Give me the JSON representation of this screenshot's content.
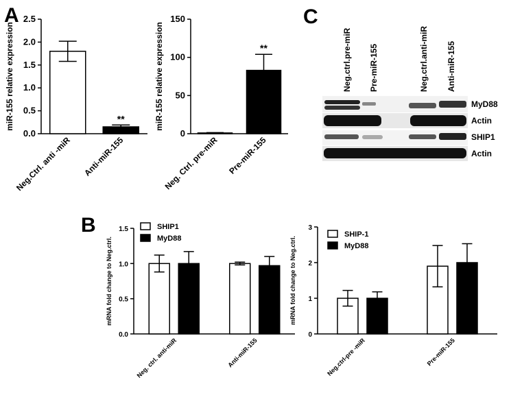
{
  "panel_labels": [
    "A",
    "B",
    "C"
  ],
  "blot": {
    "lanes": [
      "Neg.ctrl.pre-miR",
      "Pre-miR-155",
      "Neg.ctrl.anti-miR",
      "Anti-miR-155"
    ],
    "rows": [
      "MyD88",
      "Actin",
      "SHIP1",
      "Actin"
    ]
  },
  "chart_data": [
    {
      "type": "bar",
      "ylabel": "miR-155 relative expression",
      "categories": [
        "Neg.Ctrl. anti -miR",
        "Anti-miR-155"
      ],
      "values": [
        1.8,
        0.15
      ],
      "error": [
        0.22,
        0.04
      ],
      "colors": [
        "#ffffff",
        "#000000"
      ],
      "significance": [
        null,
        "**"
      ],
      "ylim": [
        0,
        2.5
      ],
      "yticks": [
        {
          "value": 0,
          "label": "0.0"
        },
        0.5,
        {
          "value": 1,
          "label": "1.0"
        },
        1.5,
        {
          "value": 2,
          "label": "2.0"
        },
        2.5
      ]
    },
    {
      "type": "bar",
      "ylabel": "miR-155 relative expression",
      "categories": [
        "Neg. Ctrl. pre-miR",
        "Pre-miR-155"
      ],
      "values": [
        1,
        83
      ],
      "error": [
        0.5,
        21
      ],
      "colors": [
        "#ffffff",
        "#000000"
      ],
      "significance": [
        null,
        "**"
      ],
      "ylim": [
        0,
        150
      ],
      "yticks": [
        0,
        50,
        100,
        150
      ]
    },
    {
      "type": "grouped_bar",
      "ylabel": "mRNA fold change to Neg.ctrl.",
      "categories": [
        "Neg. ctrl. anti-miR",
        "Anti-miR-155"
      ],
      "series": [
        {
          "name": "SHIP1",
          "color": "#ffffff",
          "values": [
            1.0,
            1.0
          ],
          "error": [
            0.12,
            0.02
          ]
        },
        {
          "name": "MyD88",
          "color": "#000000",
          "values": [
            1.0,
            0.97
          ],
          "error": [
            0.17,
            0.13
          ]
        }
      ],
      "ylim": [
        0,
        1.5
      ],
      "yticks": [
        {
          "value": 0,
          "label": "0.0"
        },
        0.5,
        {
          "value": 1,
          "label": "1.0"
        },
        1.5
      ]
    },
    {
      "type": "grouped_bar",
      "ylabel": "mRNA fold change to Neg.ctrl.",
      "categories": [
        "Neg.ctrl-pre -miR",
        "Pre-miR-155"
      ],
      "series": [
        {
          "name": "SHIP-1",
          "color": "#ffffff",
          "values": [
            1.0,
            1.9
          ],
          "error": [
            0.22,
            0.58
          ]
        },
        {
          "name": "MyD88",
          "color": "#000000",
          "values": [
            1.0,
            2.0
          ],
          "error": [
            0.18,
            0.53
          ]
        }
      ],
      "ylim": [
        0,
        3
      ],
      "yticks": [
        0,
        1,
        2,
        3
      ]
    }
  ]
}
